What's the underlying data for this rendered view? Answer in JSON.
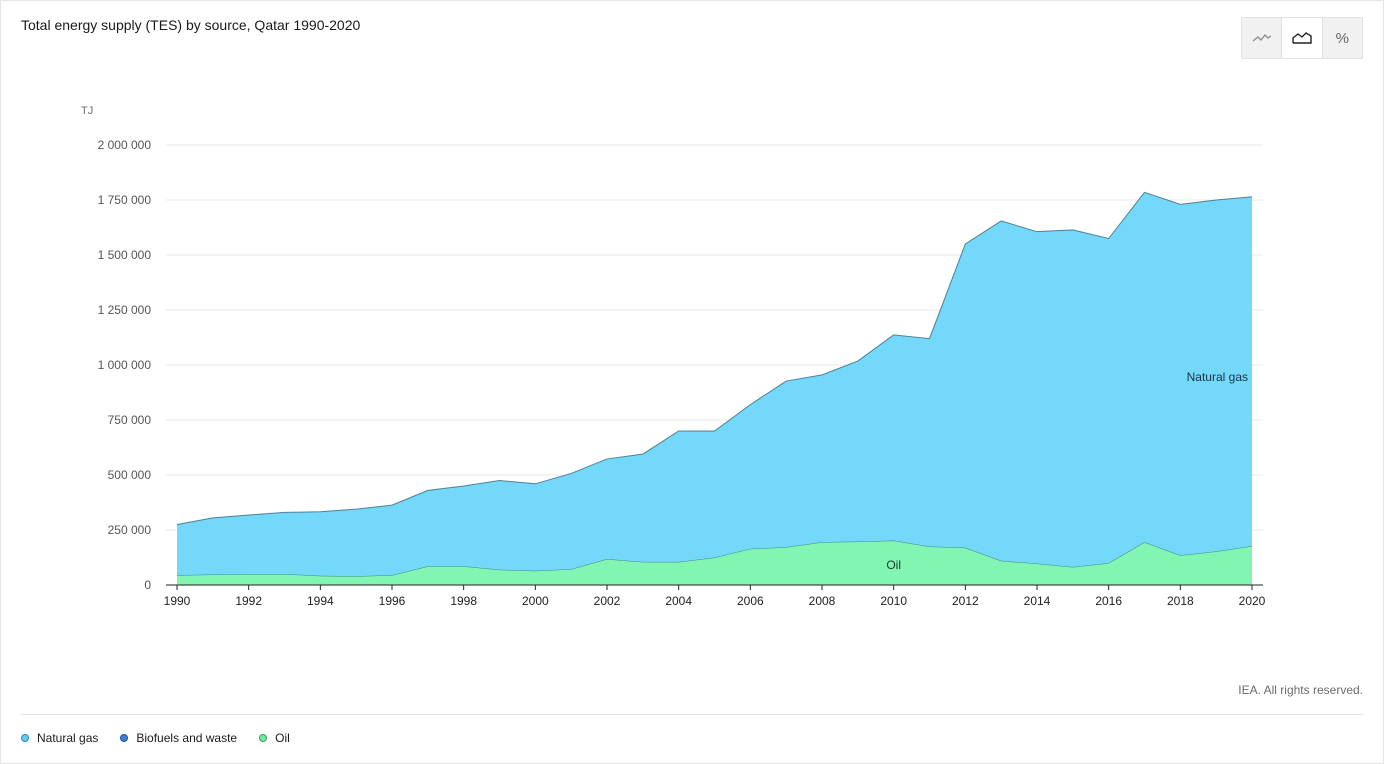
{
  "header": {
    "title": "Total energy supply (TES) by source, Qatar 1990-2020"
  },
  "toolbar": {
    "buttons": [
      {
        "name": "line-chart-icon",
        "active": false
      },
      {
        "name": "area-chart-icon",
        "active": true
      },
      {
        "name": "percent-icon",
        "label": "%",
        "active": false
      }
    ]
  },
  "footer": {
    "credit": "IEA. All rights reserved."
  },
  "legend": {
    "items": [
      {
        "label": "Natural gas",
        "color": "#5ecdf8"
      },
      {
        "label": "Biofuels and waste",
        "color": "#3d7fd6"
      },
      {
        "label": "Oil",
        "color": "#67ef9f"
      }
    ]
  },
  "chart_data": {
    "type": "area",
    "stacked": true,
    "title": "Total energy supply (TES) by source, Qatar 1990-2020",
    "ylabel": "TJ",
    "ylim": [
      0,
      2000000
    ],
    "yticks": [
      0,
      250000,
      500000,
      750000,
      1000000,
      1250000,
      1500000,
      1750000,
      2000000
    ],
    "ytick_labels": [
      "0",
      "250 000",
      "500 000",
      "750 000",
      "1 000 000",
      "1 250 000",
      "1 500 000",
      "1 750 000",
      "2 000 000"
    ],
    "xticks": [
      1990,
      1992,
      1994,
      1996,
      1998,
      2000,
      2002,
      2004,
      2006,
      2008,
      2010,
      2012,
      2014,
      2016,
      2018,
      2020
    ],
    "grid": true,
    "x": [
      1990,
      1991,
      1992,
      1993,
      1994,
      1995,
      1996,
      1997,
      1998,
      1999,
      2000,
      2001,
      2002,
      2003,
      2004,
      2005,
      2006,
      2007,
      2008,
      2009,
      2010,
      2011,
      2012,
      2013,
      2014,
      2015,
      2016,
      2017,
      2018,
      2019,
      2020
    ],
    "series": [
      {
        "name": "Oil",
        "color": "#67ef9f",
        "fill": "#82f5b3",
        "values": [
          45000,
          48000,
          50000,
          50000,
          42000,
          40000,
          45000,
          85000,
          85000,
          70000,
          65000,
          72000,
          118000,
          105000,
          105000,
          125000,
          165000,
          172000,
          195000,
          198000,
          202000,
          175000,
          170000,
          110000,
          98000,
          82000,
          100000,
          195000,
          135000,
          153000,
          177000
        ]
      },
      {
        "name": "Biofuels and waste",
        "color": "#3d7fd6",
        "fill": "#3d7fd6",
        "values": [
          0,
          0,
          0,
          0,
          0,
          0,
          0,
          0,
          0,
          0,
          0,
          0,
          0,
          0,
          0,
          0,
          0,
          0,
          0,
          0,
          0,
          0,
          0,
          0,
          0,
          0,
          0,
          0,
          0,
          0,
          0
        ]
      },
      {
        "name": "Natural gas",
        "color": "#5ecdf8",
        "fill": "#74d8fb",
        "values": [
          230000,
          257000,
          268000,
          280000,
          291000,
          305000,
          318000,
          345000,
          365000,
          405000,
          395000,
          435000,
          455000,
          490000,
          595000,
          575000,
          655000,
          755000,
          760000,
          820000,
          935000,
          945000,
          1380000,
          1545000,
          1508000,
          1532000,
          1475000,
          1590000,
          1595000,
          1597000,
          1588000
        ]
      }
    ],
    "annotations": [
      {
        "text": "Natural gas",
        "series": "Natural gas"
      },
      {
        "text": "Oil",
        "series": "Oil"
      }
    ]
  }
}
